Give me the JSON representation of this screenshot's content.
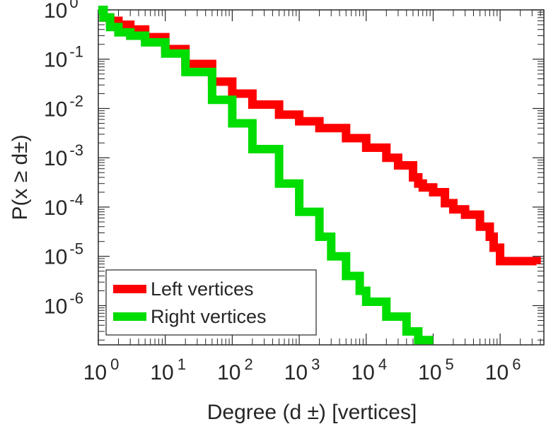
{
  "chart_data": {
    "type": "line",
    "title": "",
    "xlabel": "Degree (d ±) [vertices]",
    "ylabel": "P(x ≥ d±)",
    "xscale": "log",
    "yscale": "log",
    "xlim": [
      1,
      4500000
    ],
    "ylim": [
      1.6e-07,
      1
    ],
    "x_ticks": [
      {
        "value": 1,
        "base": "10",
        "exp": "0"
      },
      {
        "value": 10,
        "base": "10",
        "exp": "1"
      },
      {
        "value": 100,
        "base": "10",
        "exp": "2"
      },
      {
        "value": 1000,
        "base": "10",
        "exp": "3"
      },
      {
        "value": 10000,
        "base": "10",
        "exp": "4"
      },
      {
        "value": 100000,
        "base": "10",
        "exp": "5"
      },
      {
        "value": 1000000,
        "base": "10",
        "exp": "6"
      }
    ],
    "y_ticks": [
      {
        "value": 1,
        "base": "10",
        "exp": "0"
      },
      {
        "value": 0.1,
        "base": "10",
        "exp": "-1"
      },
      {
        "value": 0.01,
        "base": "10",
        "exp": "-2"
      },
      {
        "value": 0.001,
        "base": "10",
        "exp": "-3"
      },
      {
        "value": 0.0001,
        "base": "10",
        "exp": "-4"
      },
      {
        "value": 1e-05,
        "base": "10",
        "exp": "-5"
      },
      {
        "value": 1e-06,
        "base": "10",
        "exp": "-6"
      }
    ],
    "grid": false,
    "legend_position": "bottom-left",
    "series": [
      {
        "name": "Left vertices",
        "color": "#ff0000",
        "x": [
          1,
          1.2,
          1.5,
          2,
          3,
          5,
          10,
          20,
          50,
          100,
          200,
          500,
          1000,
          2000,
          5000,
          10000,
          20000,
          30000,
          50000,
          60000,
          70000,
          100000,
          150000,
          200000,
          300000,
          500000,
          700000,
          800000,
          1000000,
          2000000,
          3500000
        ],
        "y": [
          1,
          0.7,
          0.6,
          0.5,
          0.4,
          0.28,
          0.16,
          0.08,
          0.035,
          0.02,
          0.012,
          0.0075,
          0.0055,
          0.004,
          0.0025,
          0.0016,
          0.001,
          0.0007,
          0.0004,
          0.0003,
          0.00025,
          0.0002,
          0.00012,
          9e-05,
          7e-05,
          4e-05,
          2.5e-05,
          1.5e-05,
          8e-06,
          8e-06,
          7e-06
        ]
      },
      {
        "name": "Right vertices",
        "color": "#00dd00",
        "x": [
          1,
          1.2,
          1.5,
          2,
          3,
          5,
          10,
          20,
          50,
          100,
          200,
          500,
          1000,
          2000,
          3000,
          5000,
          8000,
          10000,
          20000,
          40000,
          60000,
          100000
        ],
        "y": [
          1,
          0.7,
          0.45,
          0.35,
          0.3,
          0.22,
          0.13,
          0.055,
          0.015,
          0.005,
          0.0015,
          0.0003,
          8e-05,
          2.5e-05,
          1e-05,
          4e-06,
          2e-06,
          1.2e-06,
          6e-07,
          3e-07,
          2e-07,
          2e-07
        ]
      }
    ]
  }
}
